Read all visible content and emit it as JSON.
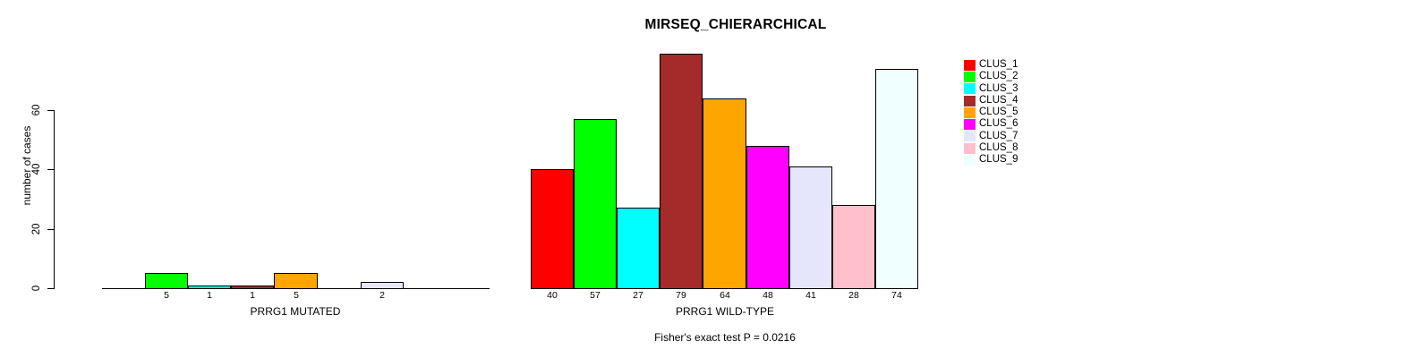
{
  "chart_data": {
    "type": "bar",
    "title": "MIRSEQ_CHIERARCHICAL",
    "ylabel": "number of cases",
    "ylim": [
      0,
      80
    ],
    "yticks": [
      0,
      20,
      40,
      60
    ],
    "grid": false,
    "legend_position": "right",
    "bar_border_color": "#000000",
    "show_value_labels": true,
    "categories": [
      "CLUS_1",
      "CLUS_2",
      "CLUS_3",
      "CLUS_4",
      "CLUS_5",
      "CLUS_6",
      "CLUS_7",
      "CLUS_8",
      "CLUS_9"
    ],
    "colors": [
      "#FF0000",
      "#00FF00",
      "#00FFFF",
      "#A52A2A",
      "#FFA500",
      "#FF00FF",
      "#E6E6FA",
      "#FFC0CB",
      "#F0FFFF"
    ],
    "series": [
      {
        "name": "PRRG1 MUTATED",
        "values": [
          0,
          5,
          1,
          1,
          5,
          0,
          2,
          0,
          0
        ]
      },
      {
        "name": "PRRG1 WILD-TYPE",
        "values": [
          40,
          57,
          27,
          79,
          64,
          48,
          41,
          28,
          74
        ]
      }
    ],
    "annotation": "Fisher's exact test P = 0.0216"
  }
}
